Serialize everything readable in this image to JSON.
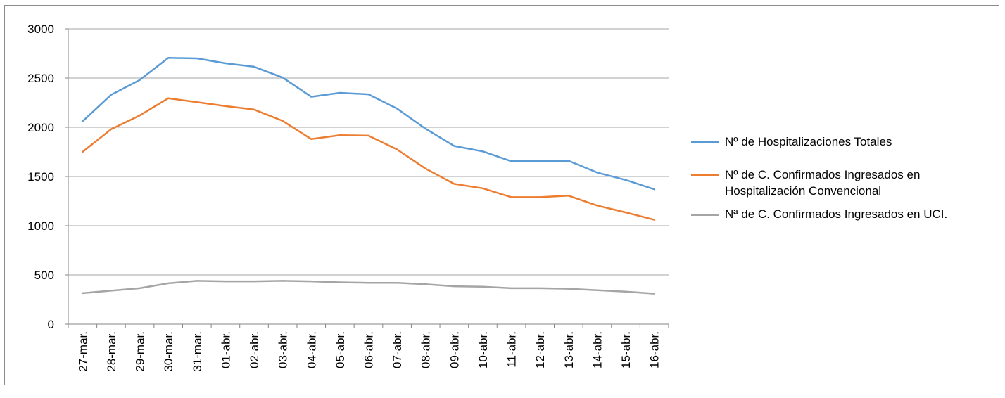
{
  "chart_data": {
    "type": "line",
    "categories": [
      "27-mar.",
      "28-mar.",
      "29-mar.",
      "30-mar.",
      "31-mar.",
      "01-abr.",
      "02-abr.",
      "03-abr.",
      "04-abr.",
      "05-abr.",
      "06-abr.",
      "07-abr.",
      "08-abr.",
      "09-abr.",
      "10-abr.",
      "11-abr.",
      "12-abr.",
      "13-abr.",
      "14-abr.",
      "15-abr.",
      "16-abr."
    ],
    "series": [
      {
        "name": "Nº de Hospitalizaciones Totales",
        "color": "#5b9bd5",
        "values": [
          2060,
          2330,
          2480,
          2705,
          2700,
          2650,
          2615,
          2505,
          2310,
          2350,
          2335,
          2190,
          1985,
          1810,
          1755,
          1655,
          1655,
          1660,
          1540,
          1465,
          1370
        ]
      },
      {
        "name": "Nº de C. Confirmados Ingresados en Hospitalización Convencional",
        "color": "#ed7d31",
        "values": [
          1750,
          1980,
          2120,
          2295,
          2255,
          2215,
          2180,
          2065,
          1880,
          1920,
          1915,
          1775,
          1580,
          1425,
          1380,
          1290,
          1290,
          1305,
          1205,
          1135,
          1060
        ]
      },
      {
        "name": "Nª de C. Confirmados Ingresados en UCI.",
        "color": "#a5a5a5",
        "values": [
          315,
          340,
          365,
          415,
          440,
          435,
          435,
          440,
          435,
          425,
          420,
          420,
          405,
          385,
          380,
          365,
          365,
          360,
          345,
          330,
          310
        ]
      }
    ],
    "yticks": [
      "0",
      "500",
      "1000",
      "1500",
      "2000",
      "2500",
      "3000"
    ],
    "ylim": [
      0,
      3000
    ],
    "grid": true,
    "legend_position": "right"
  }
}
